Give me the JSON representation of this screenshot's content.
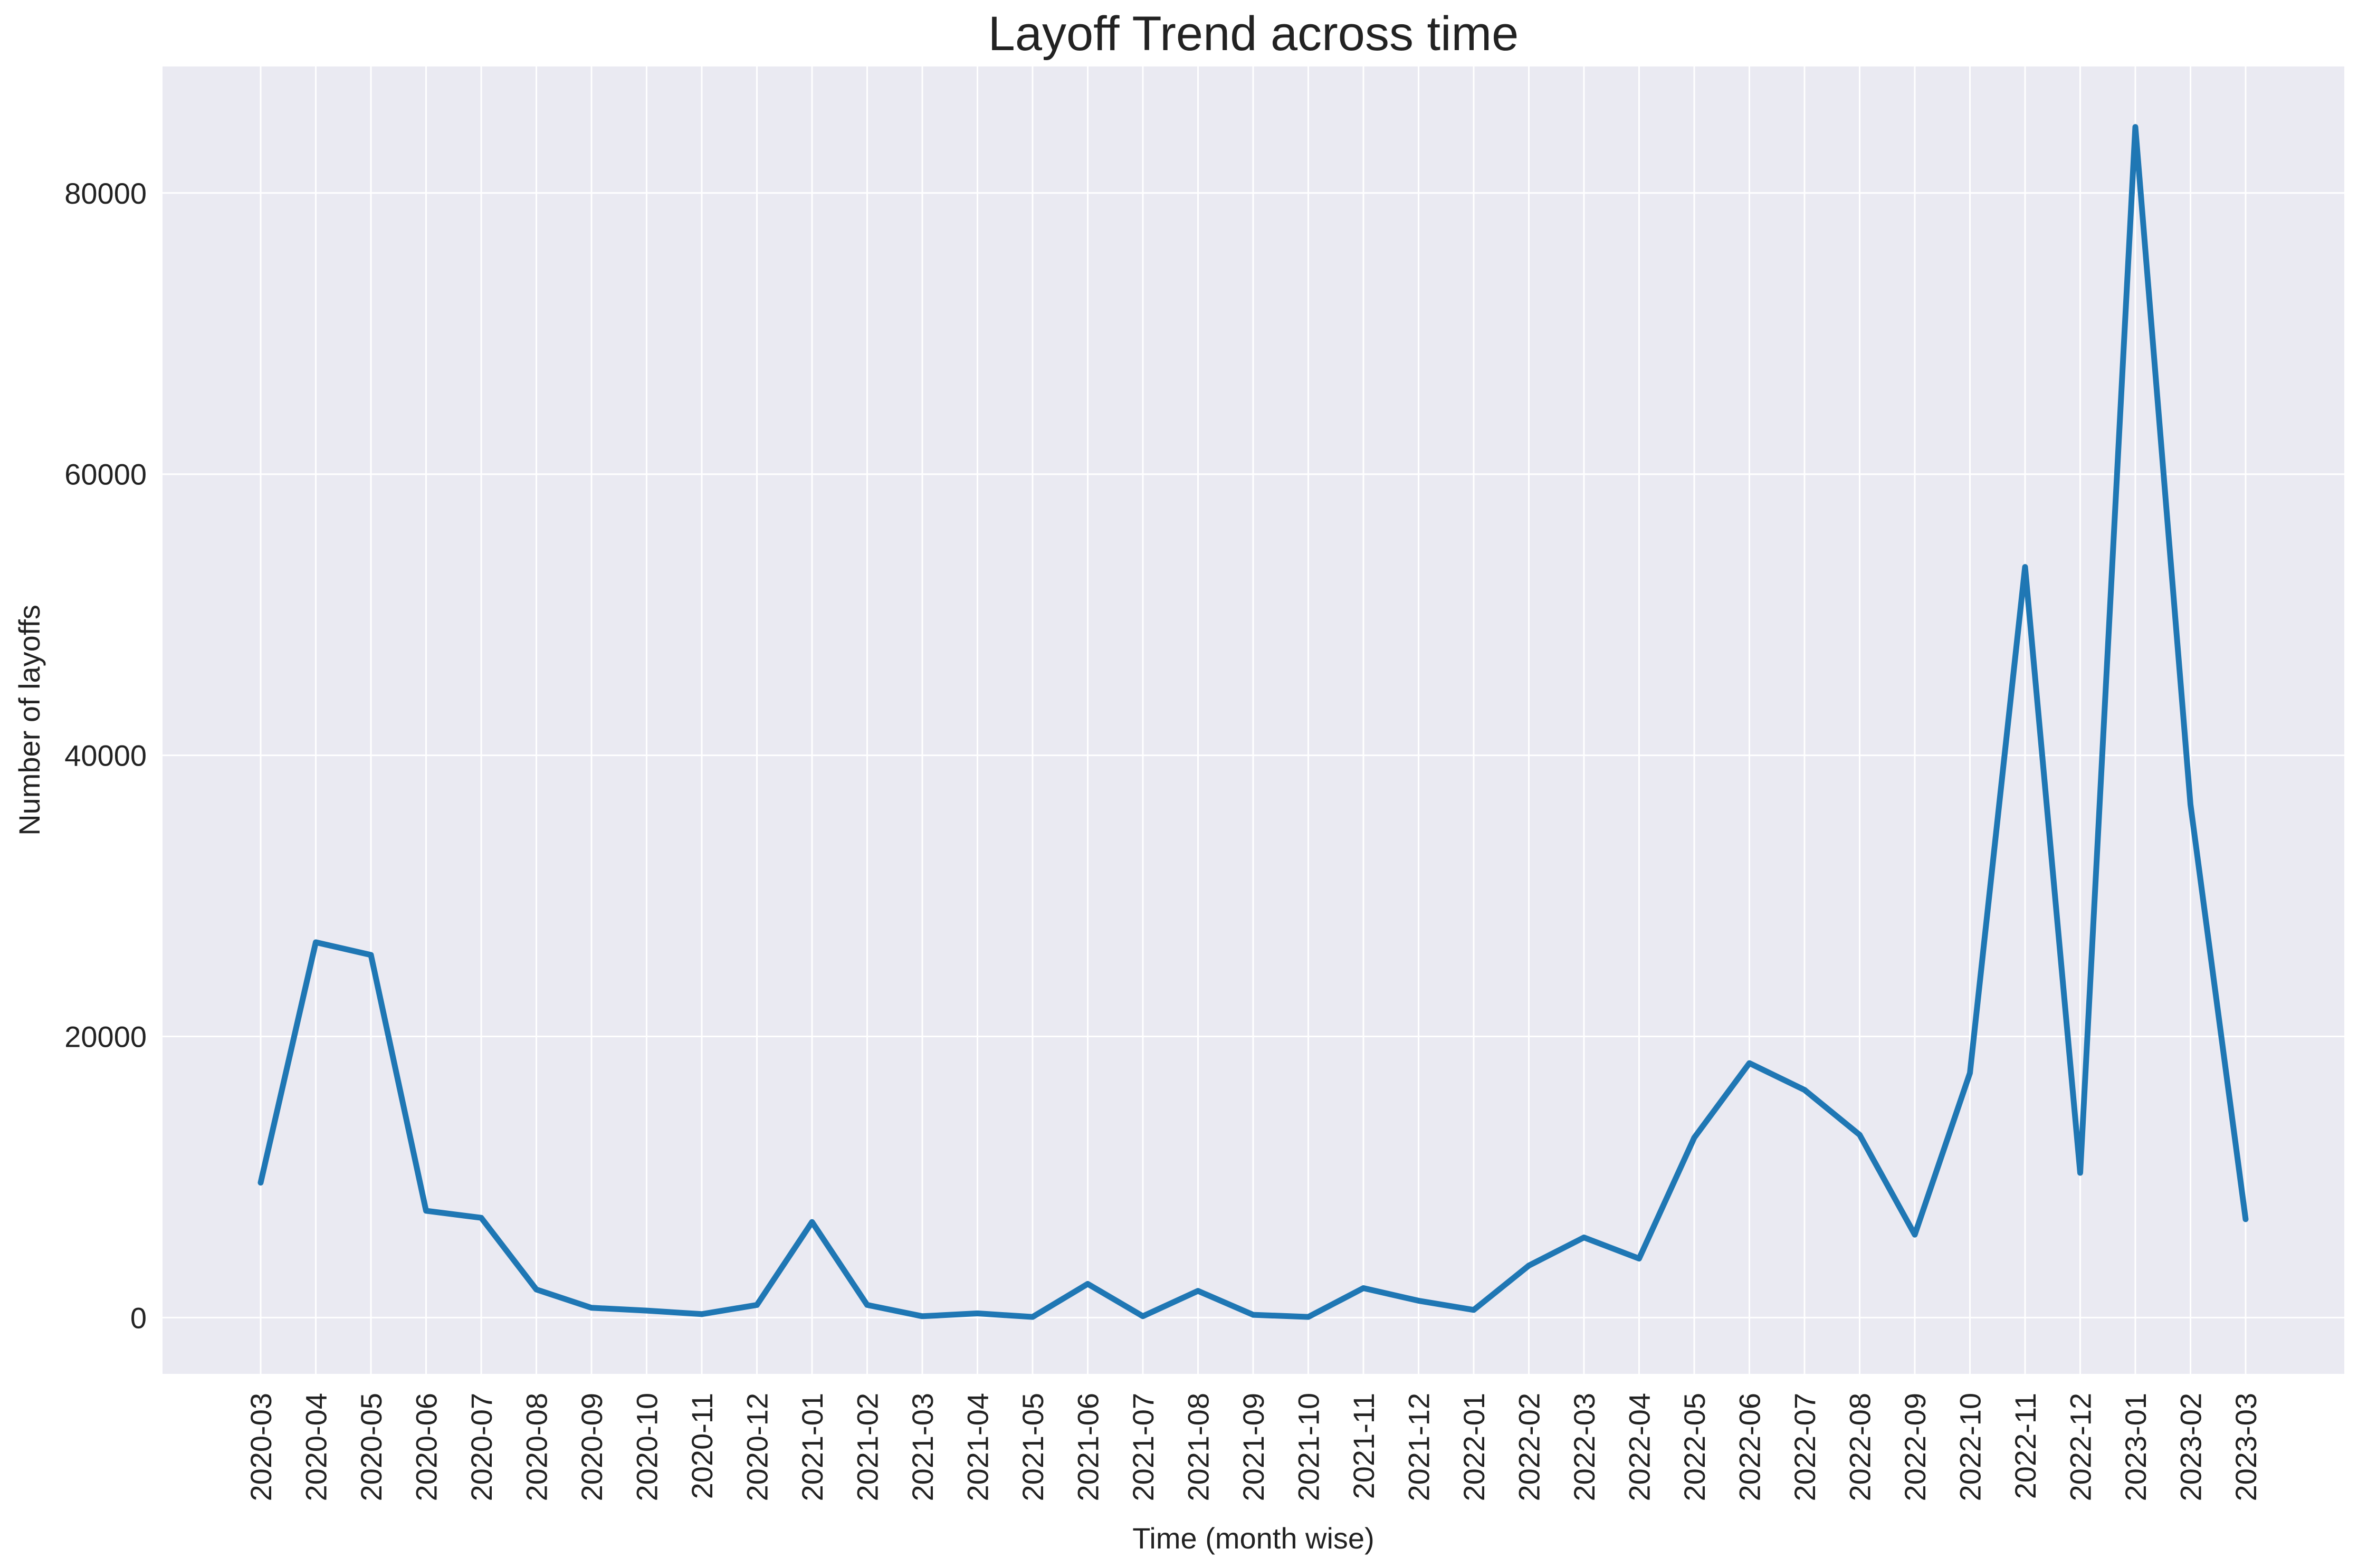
{
  "chart_data": {
    "type": "line",
    "title": "Layoff Trend across time",
    "xlabel": "Time (month wise)",
    "ylabel": "Number of layoffs",
    "ylim": [
      -4000,
      89000
    ],
    "yticks": [
      0,
      20000,
      40000,
      60000,
      80000
    ],
    "grid": true,
    "categories": [
      "2020-03",
      "2020-04",
      "2020-05",
      "2020-06",
      "2020-07",
      "2020-08",
      "2020-09",
      "2020-10",
      "2020-11",
      "2020-12",
      "2021-01",
      "2021-02",
      "2021-03",
      "2021-04",
      "2021-05",
      "2021-06",
      "2021-07",
      "2021-08",
      "2021-09",
      "2021-10",
      "2021-11",
      "2021-12",
      "2022-01",
      "2022-02",
      "2022-03",
      "2022-04",
      "2022-05",
      "2022-06",
      "2022-07",
      "2022-08",
      "2022-09",
      "2022-10",
      "2022-11",
      "2022-12",
      "2023-01",
      "2023-02",
      "2023-03"
    ],
    "series": [
      {
        "values": [
          9600,
          26700,
          25800,
          7600,
          7100,
          2000,
          700,
          500,
          250,
          900,
          6800,
          900,
          100,
          300,
          50,
          2400,
          100,
          1900,
          200,
          50,
          2100,
          1200,
          550,
          3700,
          5700,
          4200,
          12800,
          18100,
          16200,
          13000,
          5900,
          17400,
          53400,
          10300,
          84700,
          36500,
          7000
        ]
      }
    ]
  },
  "colors": {
    "line": "#1f77b4",
    "plot_background": "#eaeaf2",
    "grid": "#ffffff",
    "text": "#222222"
  }
}
